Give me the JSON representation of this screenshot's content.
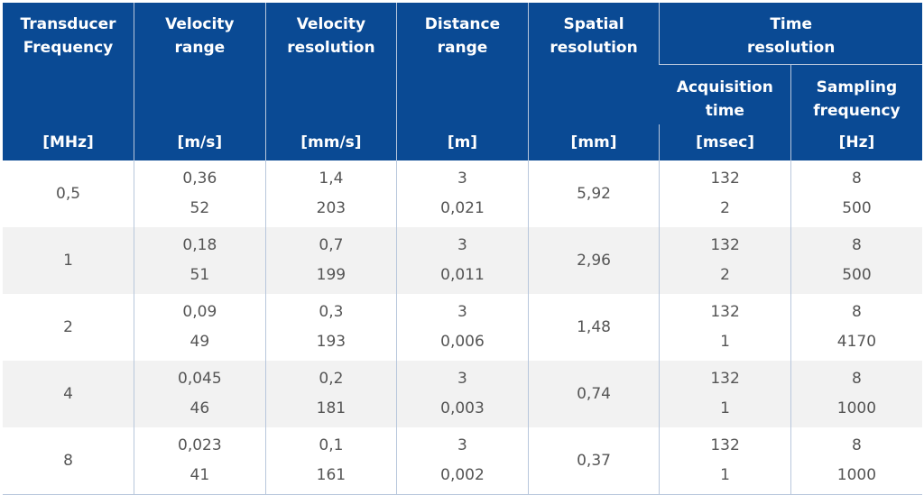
{
  "header": {
    "transducer": {
      "title_lines": [
        "Transducer",
        "Frequency"
      ],
      "unit": "[MHz]"
    },
    "velocity_range": {
      "title_lines": [
        "Velocity",
        "range"
      ],
      "unit": "[m/s]"
    },
    "velocity_resolution": {
      "title_lines": [
        "Velocity",
        "resolution"
      ],
      "unit": "[mm/s]"
    },
    "distance_range": {
      "title_lines": [
        "Distance",
        "range"
      ],
      "unit": "[m]"
    },
    "spatial_resolution": {
      "title_lines": [
        "Spatial",
        "resolution"
      ],
      "unit": "[mm]"
    },
    "time_resolution": {
      "title_lines": [
        "Time",
        "resolution"
      ]
    },
    "acquisition_time": {
      "title_lines": [
        "Acquisition",
        "time"
      ],
      "unit": "[msec]"
    },
    "sampling_frequency": {
      "title_lines": [
        "Sampling",
        "frequency"
      ],
      "unit": "[Hz]"
    }
  },
  "rows": [
    {
      "frequency": "0,5",
      "velocity_range": [
        "0,36",
        "52"
      ],
      "velocity_resolution": [
        "1,4",
        "203"
      ],
      "distance_range": [
        "3",
        "0,021"
      ],
      "spatial_resolution": "5,92",
      "acquisition_time": [
        "132",
        "2"
      ],
      "sampling_frequency": [
        "8",
        "500"
      ]
    },
    {
      "frequency": "1",
      "velocity_range": [
        "0,18",
        "51"
      ],
      "velocity_resolution": [
        "0,7",
        "199"
      ],
      "distance_range": [
        "3",
        "0,011"
      ],
      "spatial_resolution": "2,96",
      "acquisition_time": [
        "132",
        "2"
      ],
      "sampling_frequency": [
        "8",
        "500"
      ]
    },
    {
      "frequency": "2",
      "velocity_range": [
        "0,09",
        "49"
      ],
      "velocity_resolution": [
        "0,3",
        "193"
      ],
      "distance_range": [
        "3",
        "0,006"
      ],
      "spatial_resolution": "1,48",
      "acquisition_time": [
        "132",
        "1"
      ],
      "sampling_frequency": [
        "8",
        "4170"
      ]
    },
    {
      "frequency": "4",
      "velocity_range": [
        "0,045",
        "46"
      ],
      "velocity_resolution": [
        "0,2",
        "181"
      ],
      "distance_range": [
        "3",
        "0,003"
      ],
      "spatial_resolution": "0,74",
      "acquisition_time": [
        "132",
        "1"
      ],
      "sampling_frequency": [
        "8",
        "1000"
      ]
    },
    {
      "frequency": "8",
      "velocity_range": [
        "0,023",
        "41"
      ],
      "velocity_resolution": [
        "0,1",
        "161"
      ],
      "distance_range": [
        "3",
        "0,002"
      ],
      "spatial_resolution": "0,37",
      "acquisition_time": [
        "132",
        "1"
      ],
      "sampling_frequency": [
        "8",
        "1000"
      ]
    }
  ],
  "colors": {
    "header_bg": "#0a4a94",
    "header_text": "#ffffff",
    "row_shade": "#f2f2f2",
    "cell_text": "#555555",
    "grid_line": "#b8c7dc"
  }
}
